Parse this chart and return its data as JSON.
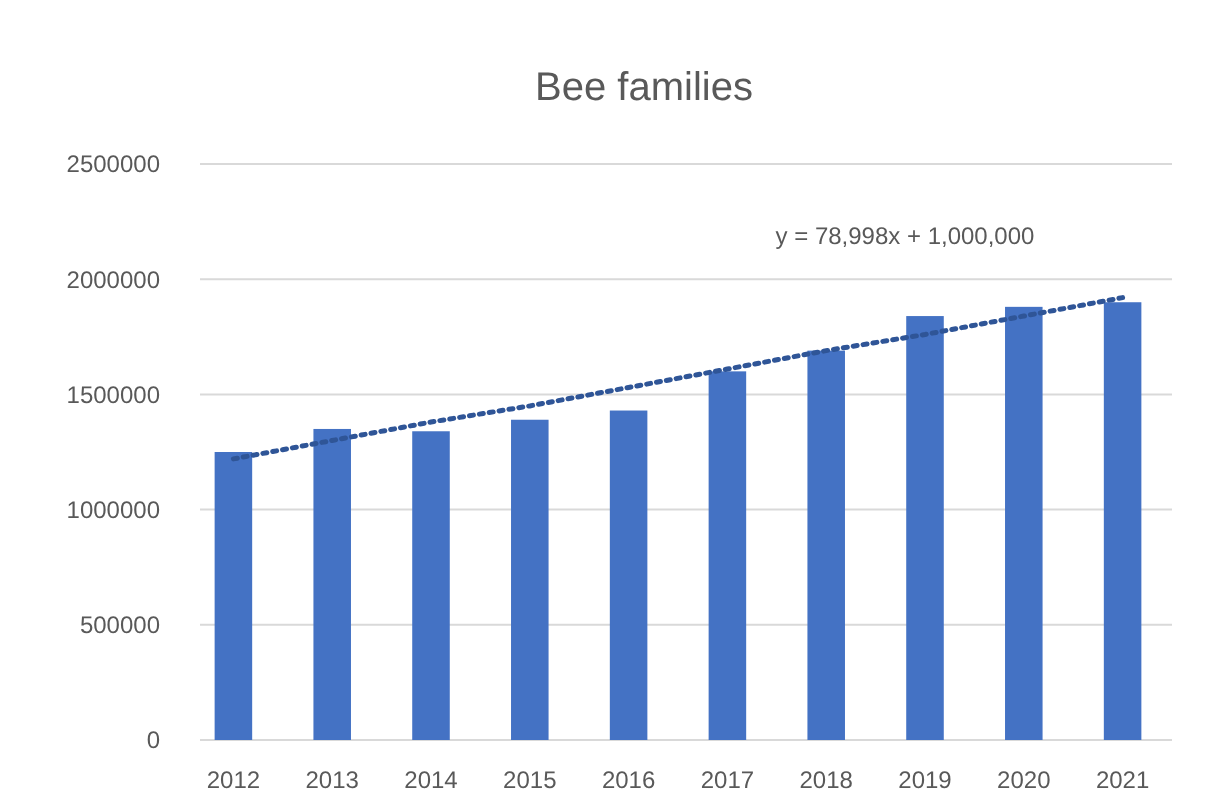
{
  "chart_data": {
    "type": "bar",
    "title": "Bee families",
    "categories": [
      "2012",
      "2013",
      "2014",
      "2015",
      "2016",
      "2017",
      "2018",
      "2019",
      "2020",
      "2021"
    ],
    "series": [
      {
        "color": "#4472c4",
        "values": [
          1250000,
          1350000,
          1340000,
          1390000,
          1430000,
          1600000,
          1690000,
          1840000,
          1880000,
          1900000
        ]
      },
      {
        "type": "line",
        "color": "#2f5597",
        "values": [
          1220000,
          1300000,
          1380000,
          1450000,
          1530000,
          1610000,
          1690000,
          1760000,
          1840000,
          1920000
        ],
        "line_style": "dotted",
        "marker": "none"
      }
    ],
    "ylim": [
      0,
      2500000
    ],
    "yticks": [
      0,
      500000,
      1000000,
      1500000,
      2000000,
      2500000
    ],
    "grid": "y",
    "legend": false,
    "annotations": [
      "y = 78,998x + 1,000,000"
    ]
  }
}
